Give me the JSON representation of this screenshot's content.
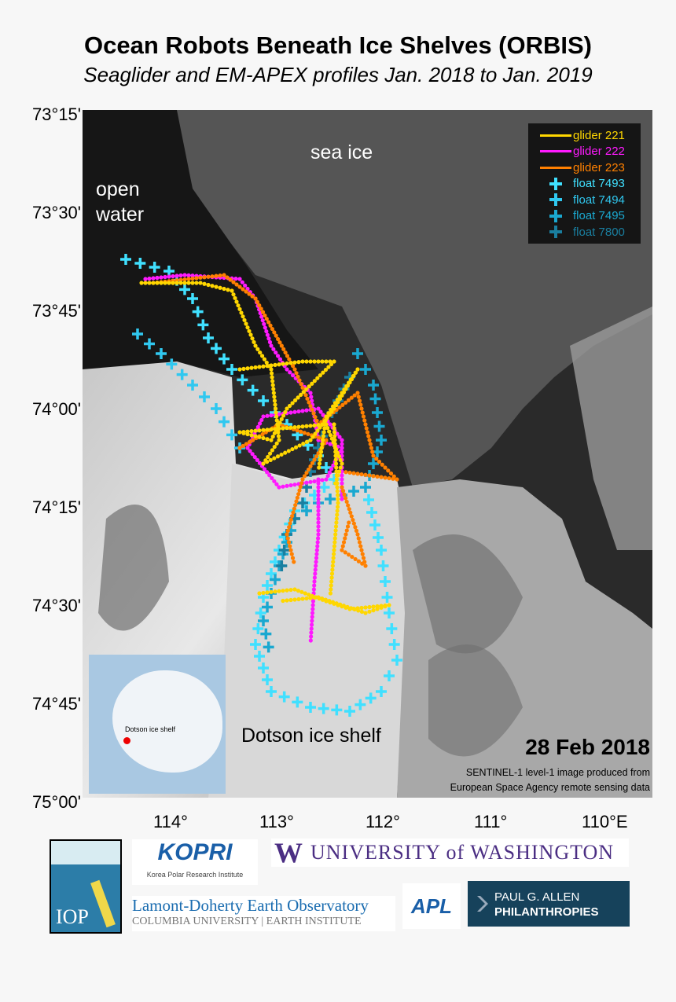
{
  "title": "Ocean Robots Beneath Ice Shelves (ORBIS)",
  "subtitle": "Seaglider and EM-APEX profiles Jan. 2018 to Jan. 2019",
  "map": {
    "lat_labels": [
      "73°15'",
      "73°30'",
      "73°45'",
      "74°00'",
      "74°15'",
      "74°30'",
      "74°45'",
      "75°00'"
    ],
    "lon_labels": [
      "114°",
      "113°",
      "112°",
      "111°",
      "110°E"
    ],
    "labels": {
      "open_water": "open\nwater",
      "sea_ice": "sea ice",
      "ice_shelf": "Dotson ice shelf"
    },
    "date": "28 Feb 2018",
    "credit_1": "SENTINEL-1 level-1 image produced from",
    "credit_2": "European Space Agency remote sensing data",
    "inset_label": "Dotson ice shelf"
  },
  "legend": [
    {
      "label": "glider 221",
      "type": "line",
      "color": "#ffd700"
    },
    {
      "label": "glider 222",
      "type": "line",
      "color": "#ff1aff"
    },
    {
      "label": "glider 223",
      "type": "line",
      "color": "#ff8000"
    },
    {
      "label": "float 7493",
      "type": "plus",
      "color": "#40e0ff"
    },
    {
      "label": "float 7494",
      "type": "plus",
      "color": "#30c8f0"
    },
    {
      "label": "float 7495",
      "type": "plus",
      "color": "#1aa8d0"
    },
    {
      "label": "float 7800",
      "type": "plus",
      "color": "#1a7fa0"
    }
  ],
  "logos": {
    "iop": "IOP",
    "kopri": "KOPRI",
    "kopri_sub": "Korea Polar Research Institute",
    "uw_mark": "W",
    "uw": "UNIVERSITY of WASHINGTON",
    "ldeo": "Lamont-Doherty Earth Observatory",
    "ldeo_sub": "COLUMBIA UNIVERSITY | EARTH INSTITUTE",
    "apl": "APL",
    "allen_1": "PAUL G. ALLEN",
    "allen_2": "PHILANTHROPIES"
  }
}
